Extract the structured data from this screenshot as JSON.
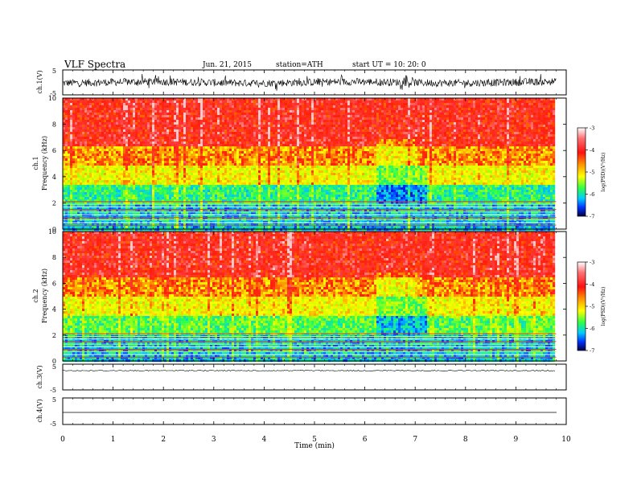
{
  "header": {
    "title": "VLF  Spectra",
    "date": "Jun. 21, 2015",
    "station": "station=ATH",
    "start": "start  UT  =    10: 20: 0"
  },
  "chart_data": [
    {
      "type": "line",
      "panel": "ch.1",
      "ylabel": "ch.1(V)",
      "ylim": [
        -5,
        5
      ],
      "yticks": [
        "5",
        "-5"
      ],
      "x_unit": "min",
      "xlim": [
        0,
        10
      ],
      "data_xmax": 9.8,
      "description_values": {
        "baseline": 0,
        "amplitude_typical": 1.5,
        "amplitude_peak": 3.2
      },
      "color": "#000000"
    },
    {
      "type": "heatmap",
      "panel": "ch.1",
      "ylabel_top": "ch.1",
      "ylabel": "Frequency  (kHz)",
      "ylim": [
        0,
        10
      ],
      "yticks": [
        "0",
        "2",
        "4",
        "6",
        "8",
        "10"
      ],
      "xlim": [
        0,
        10
      ],
      "data_xmax": 9.8,
      "colorbar": {
        "label": "log(PSD)(V²/Hz)",
        "range": [
          -7,
          -3
        ],
        "ticks": [
          "-3",
          "-4",
          "-5",
          "-6",
          "-7"
        ]
      },
      "bands": [
        {
          "f_from": 0,
          "f_to": 2,
          "level": -6.0
        },
        {
          "f_from": 2,
          "f_to": 3.5,
          "level": -5.6
        },
        {
          "f_from": 3.5,
          "f_to": 5,
          "level": -4.7
        },
        {
          "f_from": 5,
          "f_to": 6.5,
          "level": -4.2
        },
        {
          "f_from": 6.5,
          "f_to": 10,
          "level": -3.6
        }
      ]
    },
    {
      "type": "heatmap",
      "panel": "ch.2",
      "ylabel_top": "ch.2",
      "ylabel": "Frequency  (kHz)",
      "ylim": [
        0,
        10
      ],
      "yticks": [
        "0",
        "2",
        "4",
        "6",
        "8",
        "10"
      ],
      "xlim": [
        0,
        10
      ],
      "data_xmax": 9.8,
      "colorbar": {
        "label": "log(PSD)(V²/Hz)",
        "range": [
          -7,
          -3
        ],
        "ticks": [
          "-3",
          "-4",
          "-5",
          "-6",
          "-7"
        ]
      },
      "bands": [
        {
          "f_from": 0,
          "f_to": 2,
          "level": -6.0
        },
        {
          "f_from": 2,
          "f_to": 3.5,
          "level": -5.4
        },
        {
          "f_from": 3.5,
          "f_to": 5,
          "level": -4.7
        },
        {
          "f_from": 5,
          "f_to": 6.5,
          "level": -4.2
        },
        {
          "f_from": 6.5,
          "f_to": 10,
          "level": -3.6
        }
      ]
    },
    {
      "type": "line",
      "panel": "ch.3",
      "ylabel": "ch.3(V)",
      "ylim": [
        -5,
        5
      ],
      "yticks": [
        "5",
        "-5"
      ],
      "xlim": [
        0,
        10
      ],
      "data_xmax": 9.8,
      "description_values": {
        "baseline": 0,
        "amplitude_typical": 0.2
      }
    },
    {
      "type": "line",
      "panel": "ch.4",
      "ylabel": "ch.4(V)",
      "ylim": [
        -5,
        5
      ],
      "yticks": [
        "5",
        "-5"
      ],
      "xlim": [
        0,
        10
      ],
      "data_xmax": 9.8,
      "description_values": {
        "baseline": 0,
        "amplitude_typical": 0
      }
    }
  ],
  "x_axis": {
    "label": "Time  (min)",
    "ticks": [
      "0",
      "1",
      "2",
      "3",
      "4",
      "5",
      "6",
      "7",
      "8",
      "9",
      "10"
    ]
  }
}
